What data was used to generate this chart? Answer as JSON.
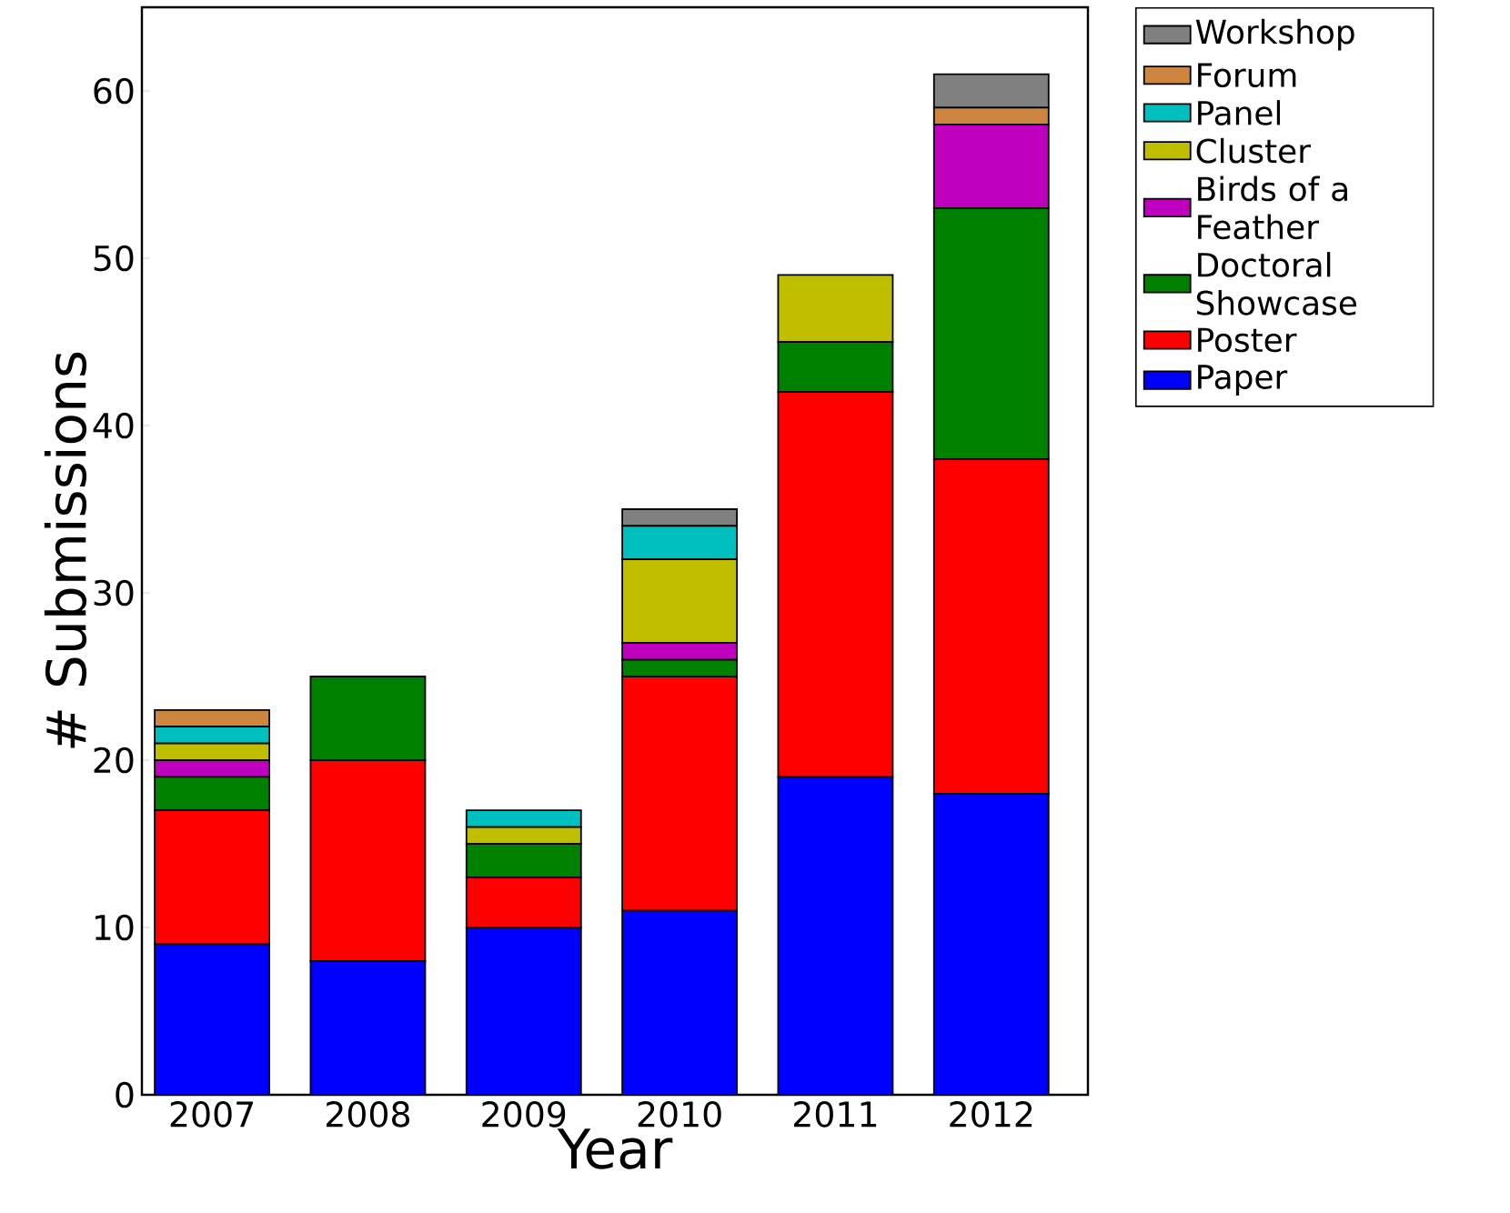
{
  "chart_data": {
    "type": "bar",
    "stacked": true,
    "xlabel": "Year",
    "ylabel": "# Submissions",
    "categories": [
      "2007",
      "2008",
      "2009",
      "2010",
      "2011",
      "2012"
    ],
    "ylim": [
      0,
      65
    ],
    "yticks": [
      0,
      10,
      20,
      30,
      40,
      50,
      60
    ],
    "grid": false,
    "legend": "top right",
    "series": [
      {
        "name": "Paper",
        "color": "#0000ff",
        "values": [
          9,
          8,
          10,
          11,
          19,
          18
        ]
      },
      {
        "name": "Poster",
        "color": "#ff0000",
        "values": [
          8,
          12,
          3,
          14,
          23,
          20
        ]
      },
      {
        "name": "Doctoral Showcase",
        "color": "#008000",
        "values": [
          2,
          5,
          2,
          1,
          3,
          15
        ]
      },
      {
        "name": "Birds of a Feather",
        "color": "#bf00bf",
        "values": [
          1,
          0,
          0,
          1,
          0,
          5
        ]
      },
      {
        "name": "Cluster",
        "color": "#bfbf00",
        "values": [
          1,
          0,
          1,
          5,
          4,
          0
        ]
      },
      {
        "name": "Panel",
        "color": "#00bfbf",
        "values": [
          1,
          0,
          1,
          2,
          0,
          0
        ]
      },
      {
        "name": "Forum",
        "color": "#cd853f",
        "values": [
          1,
          0,
          0,
          0,
          0,
          1
        ]
      },
      {
        "name": "Workshop",
        "color": "#808080",
        "values": [
          0,
          0,
          0,
          1,
          0,
          2
        ]
      }
    ]
  }
}
